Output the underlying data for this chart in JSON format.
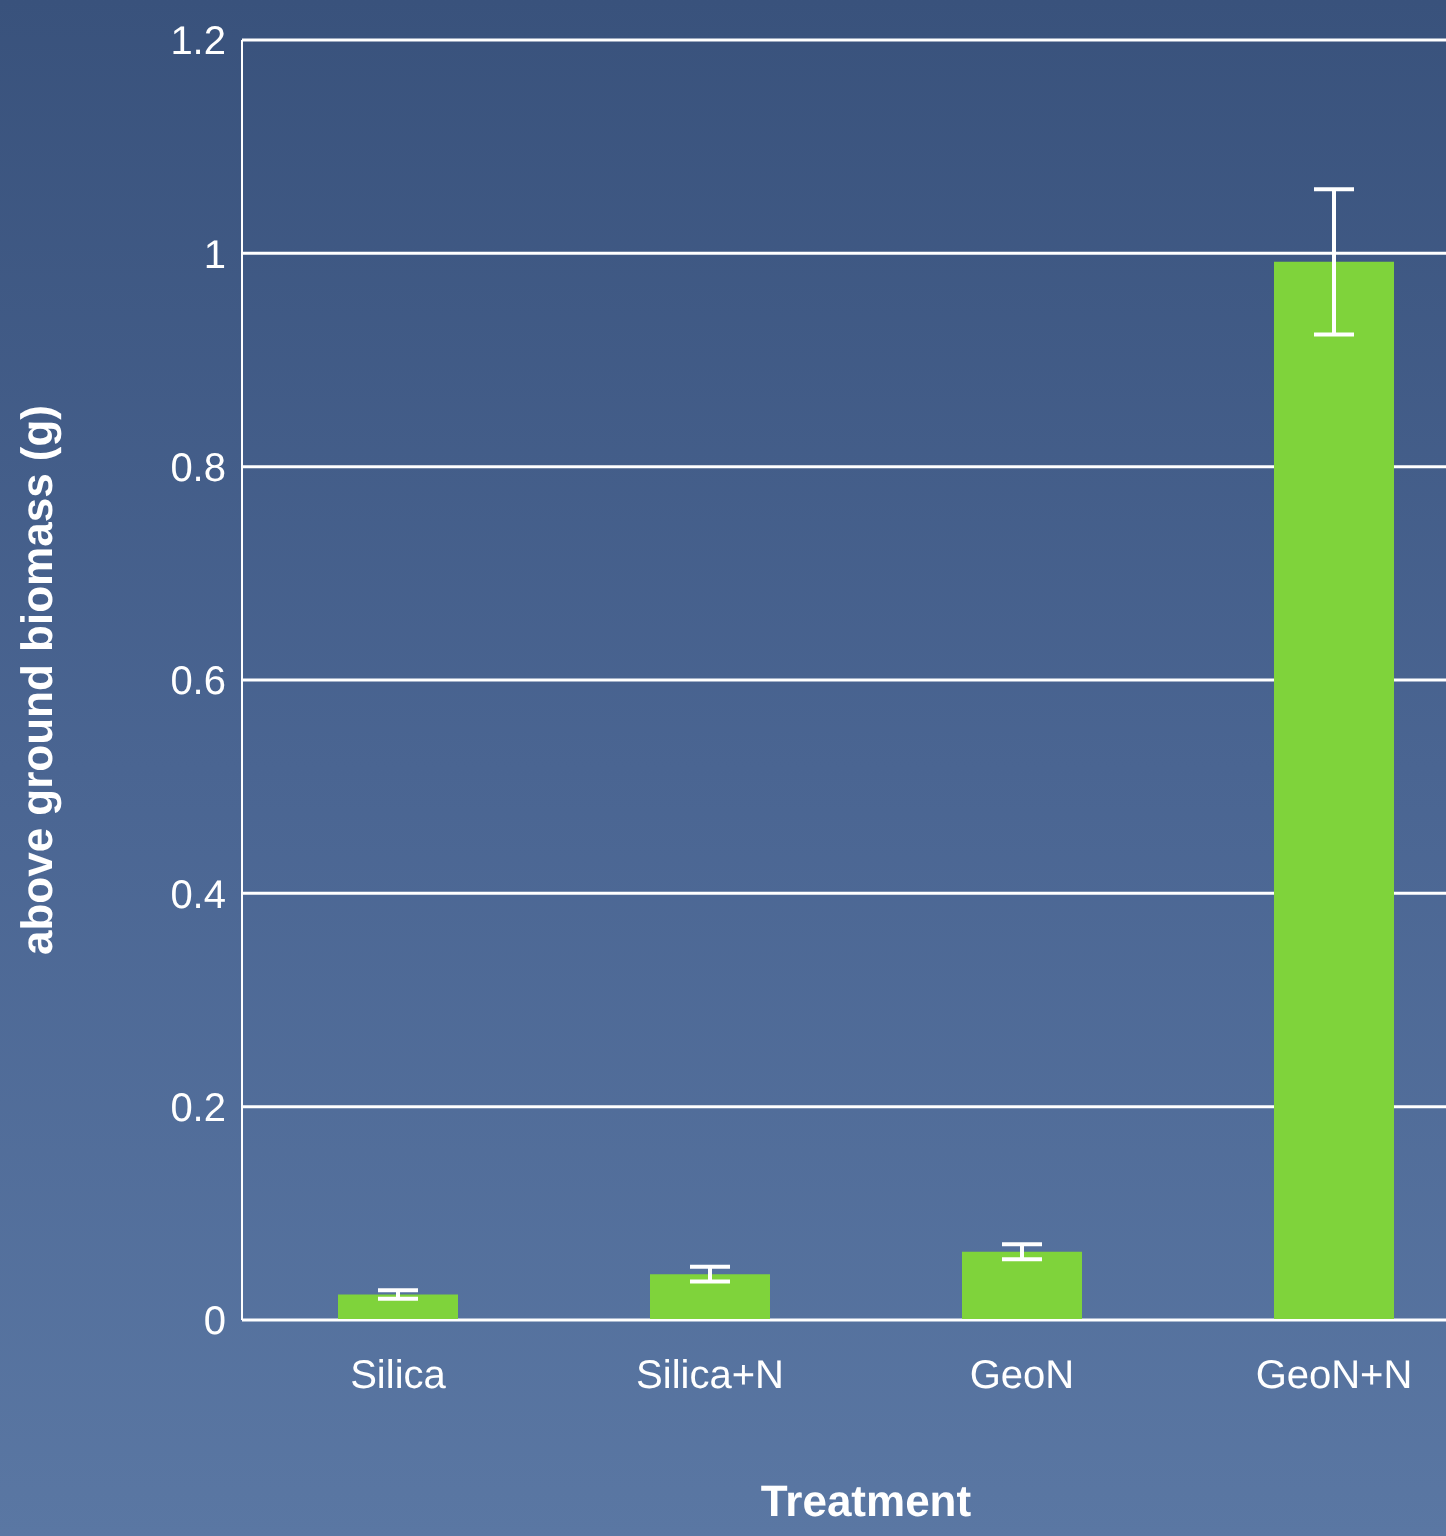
{
  "chart_data": {
    "type": "bar",
    "xlabel": "Treatment",
    "ylabel": "above ground biomass (g)",
    "categories": [
      "Silica",
      "Silica+N",
      "GeoN",
      "GeoN+N"
    ],
    "values": [
      0.024,
      0.043,
      0.064,
      0.992
    ],
    "errors": [
      0.004,
      0.007,
      0.007,
      0.068
    ],
    "color": "#7fd33b",
    "ylim": [
      0,
      1.2
    ],
    "yticks": [
      0,
      0.2,
      0.4,
      0.6,
      0.8,
      1,
      1.2
    ],
    "grid": "y"
  }
}
